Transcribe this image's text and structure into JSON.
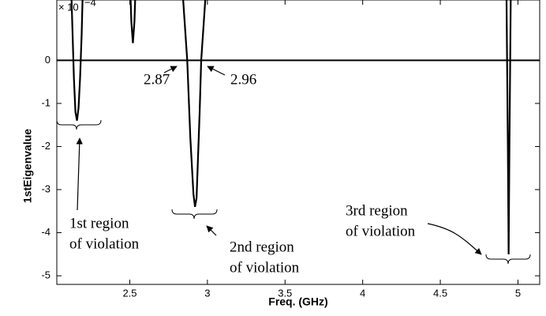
{
  "chart_data": {
    "type": "line",
    "x_label": "Freq. (GHz)",
    "y_label": "1stEigenvalue",
    "y_multiplier": "× 10",
    "y_multiplier_exponent": "−4",
    "xlim": [
      2.03,
      5.14
    ],
    "ylim": [
      -5.2,
      1.4
    ],
    "xticks": [
      2.5,
      3,
      3.5,
      4,
      4.5,
      5
    ],
    "yticks": [
      0,
      -1,
      -2,
      -3,
      -4,
      -5
    ],
    "hline": 0,
    "grid": false,
    "series": [
      {
        "color": "#000000",
        "x": [
          2.12,
          2.13,
          2.14,
          2.15,
          2.16,
          2.17,
          2.18,
          2.19,
          2.2,
          null,
          2.5,
          2.51,
          2.52,
          2.53,
          2.54,
          null,
          2.84,
          2.87,
          2.89,
          2.91,
          2.92,
          2.93,
          2.95,
          2.96,
          2.99,
          null,
          4.925,
          4.935,
          4.94,
          4.945,
          4.955
        ],
        "values": [
          2.0,
          0.8,
          -0.4,
          -1.2,
          -1.4,
          -1.1,
          -0.4,
          0.6,
          2.0,
          null,
          2.0,
          0.9,
          0.4,
          0.9,
          2.0,
          null,
          1.6,
          0,
          -1.8,
          -3.1,
          -3.4,
          -3.2,
          -1.2,
          0,
          1.6,
          null,
          2.0,
          -2.0,
          -4.5,
          -2.0,
          2.0
        ]
      }
    ],
    "annotations": [
      [
        "2.87"
      ],
      [
        "2.96"
      ],
      [
        "1st region",
        "of violation"
      ],
      [
        "2nd region",
        "of violation"
      ],
      [
        "3rd region",
        "of violation"
      ]
    ]
  }
}
